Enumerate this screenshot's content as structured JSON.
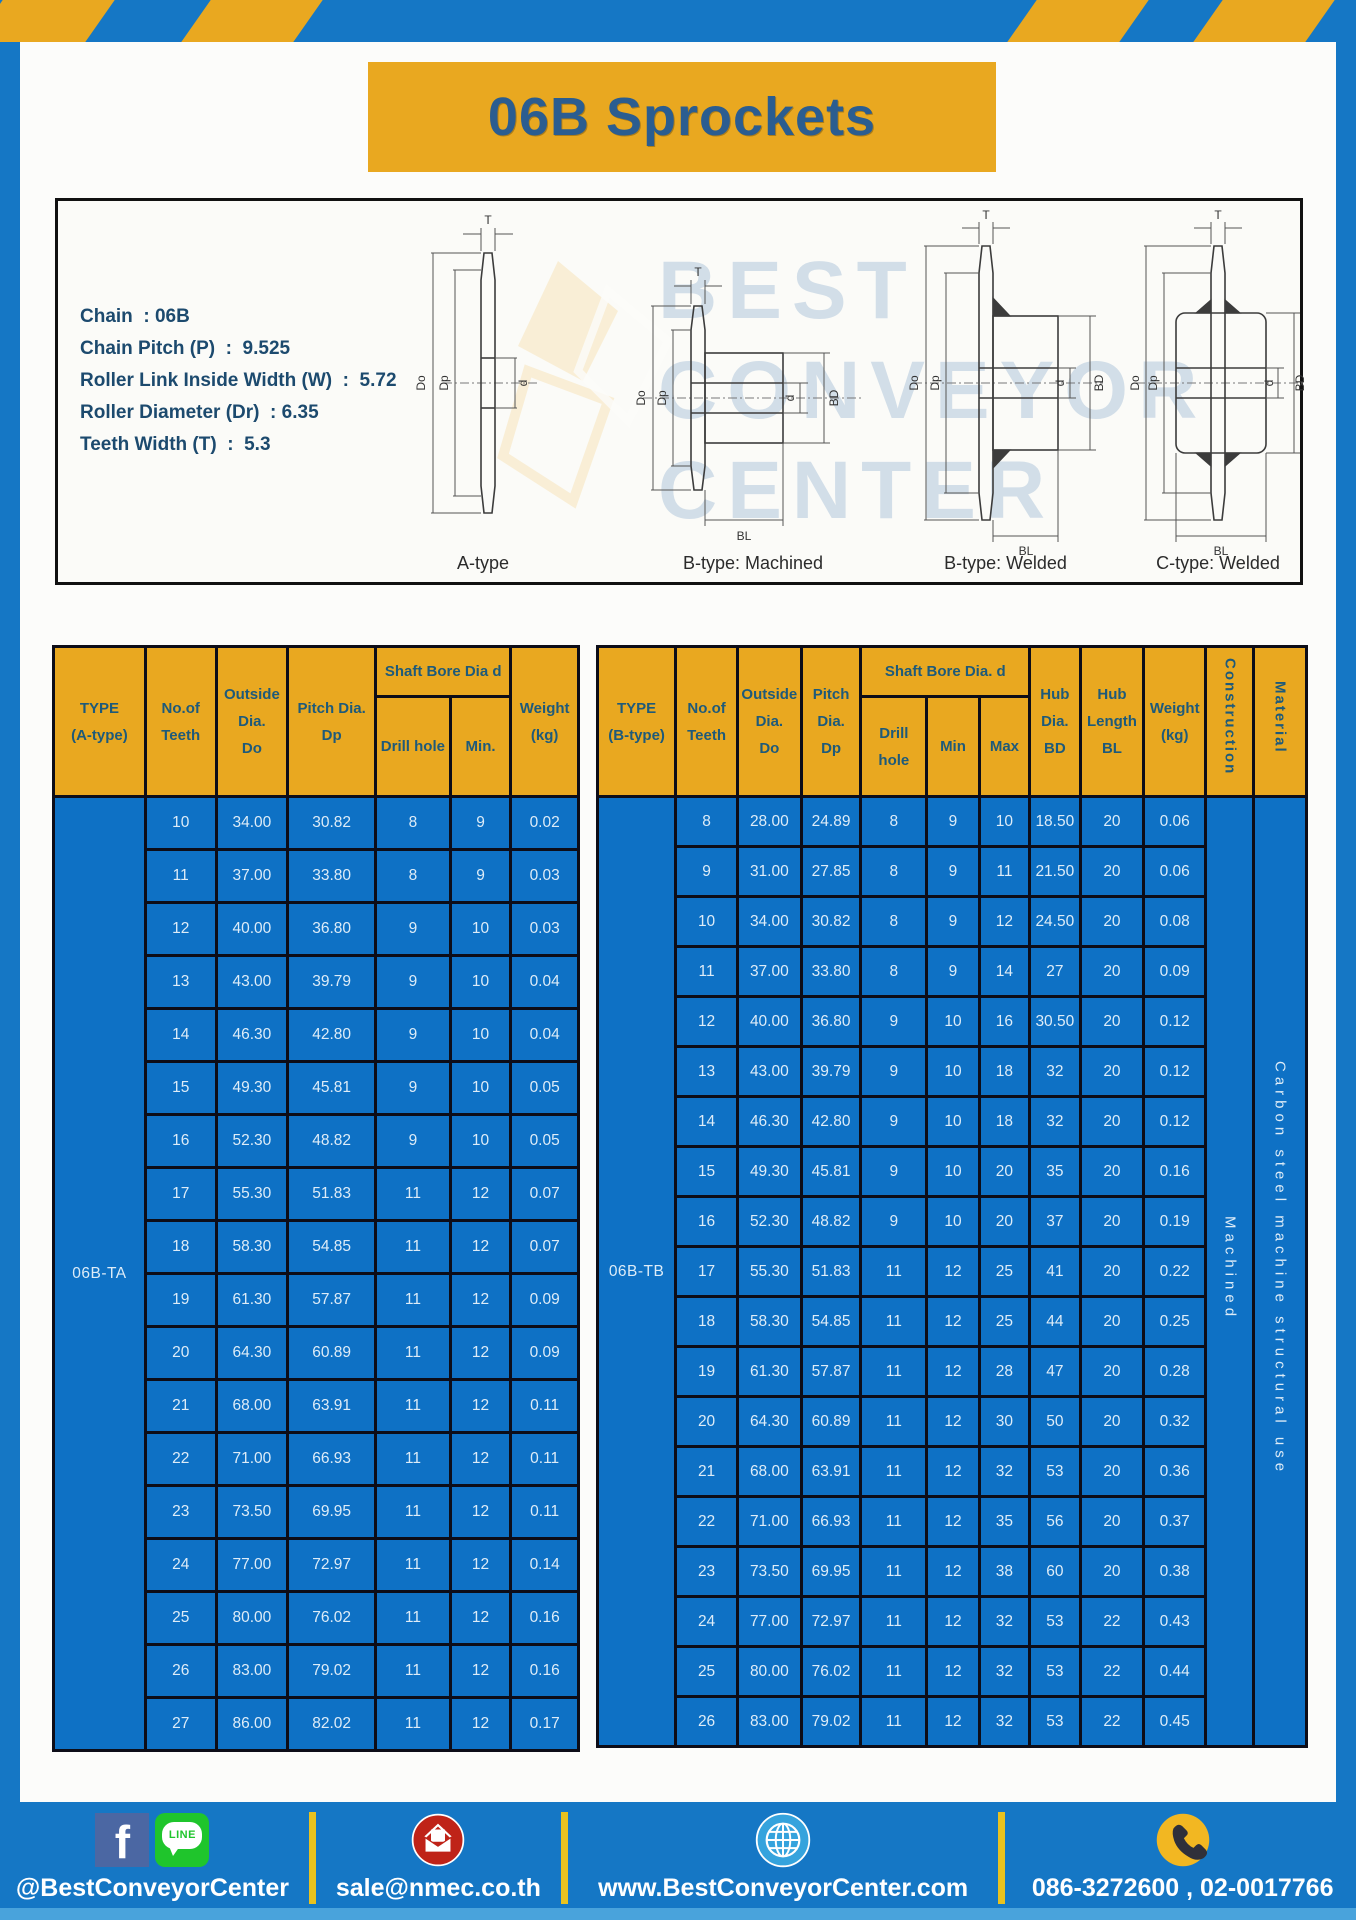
{
  "page": {
    "title": "06B Sprockets"
  },
  "specs": {
    "lines": [
      "Chain  : 06B",
      "Chain Pitch (P)  :  9.525",
      "Roller Link Inside Width (W)  :  5.72",
      "Roller Diameter (Dr)  : 6.35",
      "Teeth Width (T)  :  5.3"
    ]
  },
  "dims": {
    "T": "T",
    "Do": "Do",
    "Dp": "Dp",
    "d": "d",
    "BD": "BD",
    "BL": "BL"
  },
  "watermark": {
    "line1": "BEST",
    "line2": "CONVEYOR",
    "line3": "CENTER"
  },
  "diagrams": [
    {
      "caption": "A-type"
    },
    {
      "caption": "B-type: Machined"
    },
    {
      "caption": "B-type: Welded"
    },
    {
      "caption": "C-type: Welded"
    }
  ],
  "table_a": {
    "type_label": "06B-TA",
    "headers": {
      "type": "TYPE\n(A-type)",
      "teeth": "No.of\nTeeth",
      "outside": "Outside\nDia.\nDo",
      "pitch": "Pitch Dia.\nDp",
      "shaft_bore": "Shaft Bore Dia d",
      "drill": "Drill hole",
      "min": "Min.",
      "weight": "Weight\n(kg)"
    },
    "rows": [
      [
        "10",
        "34.00",
        "30.82",
        "8",
        "9",
        "0.02"
      ],
      [
        "11",
        "37.00",
        "33.80",
        "8",
        "9",
        "0.03"
      ],
      [
        "12",
        "40.00",
        "36.80",
        "9",
        "10",
        "0.03"
      ],
      [
        "13",
        "43.00",
        "39.79",
        "9",
        "10",
        "0.04"
      ],
      [
        "14",
        "46.30",
        "42.80",
        "9",
        "10",
        "0.04"
      ],
      [
        "15",
        "49.30",
        "45.81",
        "9",
        "10",
        "0.05"
      ],
      [
        "16",
        "52.30",
        "48.82",
        "9",
        "10",
        "0.05"
      ],
      [
        "17",
        "55.30",
        "51.83",
        "11",
        "12",
        "0.07"
      ],
      [
        "18",
        "58.30",
        "54.85",
        "11",
        "12",
        "0.07"
      ],
      [
        "19",
        "61.30",
        "57.87",
        "11",
        "12",
        "0.09"
      ],
      [
        "20",
        "64.30",
        "60.89",
        "11",
        "12",
        "0.09"
      ],
      [
        "21",
        "68.00",
        "63.91",
        "11",
        "12",
        "0.11"
      ],
      [
        "22",
        "71.00",
        "66.93",
        "11",
        "12",
        "0.11"
      ],
      [
        "23",
        "73.50",
        "69.95",
        "11",
        "12",
        "0.11"
      ],
      [
        "24",
        "77.00",
        "72.97",
        "11",
        "12",
        "0.14"
      ],
      [
        "25",
        "80.00",
        "76.02",
        "11",
        "12",
        "0.16"
      ],
      [
        "26",
        "83.00",
        "79.02",
        "11",
        "12",
        "0.16"
      ],
      [
        "27",
        "86.00",
        "82.02",
        "11",
        "12",
        "0.17"
      ]
    ]
  },
  "table_b": {
    "type_label": "06B-TB",
    "construction": "Machined",
    "material": "Carbon steel machine structural use",
    "headers": {
      "type": "TYPE\n(B-type)",
      "teeth": "No.of\nTeeth",
      "outside": "Outside\nDia.\nDo",
      "pitch": "Pitch\nDia.\nDp",
      "shaft_bore": "Shaft Bore Dia. d",
      "drill": "Drill hole",
      "min": "Min",
      "max": "Max",
      "hub_dia": "Hub\nDia.\nBD",
      "hub_len": "Hub\nLength\nBL",
      "weight": "Weight\n(kg)",
      "construction": "Construction",
      "material": "Material"
    },
    "rows": [
      [
        "8",
        "28.00",
        "24.89",
        "8",
        "9",
        "10",
        "18.50",
        "20",
        "0.06"
      ],
      [
        "9",
        "31.00",
        "27.85",
        "8",
        "9",
        "11",
        "21.50",
        "20",
        "0.06"
      ],
      [
        "10",
        "34.00",
        "30.82",
        "8",
        "9",
        "12",
        "24.50",
        "20",
        "0.08"
      ],
      [
        "11",
        "37.00",
        "33.80",
        "8",
        "9",
        "14",
        "27",
        "20",
        "0.09"
      ],
      [
        "12",
        "40.00",
        "36.80",
        "9",
        "10",
        "16",
        "30.50",
        "20",
        "0.12"
      ],
      [
        "13",
        "43.00",
        "39.79",
        "9",
        "10",
        "18",
        "32",
        "20",
        "0.12"
      ],
      [
        "14",
        "46.30",
        "42.80",
        "9",
        "10",
        "18",
        "32",
        "20",
        "0.12"
      ],
      [
        "15",
        "49.30",
        "45.81",
        "9",
        "10",
        "20",
        "35",
        "20",
        "0.16"
      ],
      [
        "16",
        "52.30",
        "48.82",
        "9",
        "10",
        "20",
        "37",
        "20",
        "0.19"
      ],
      [
        "17",
        "55.30",
        "51.83",
        "11",
        "12",
        "25",
        "41",
        "20",
        "0.22"
      ],
      [
        "18",
        "58.30",
        "54.85",
        "11",
        "12",
        "25",
        "44",
        "20",
        "0.25"
      ],
      [
        "19",
        "61.30",
        "57.87",
        "11",
        "12",
        "28",
        "47",
        "20",
        "0.28"
      ],
      [
        "20",
        "64.30",
        "60.89",
        "11",
        "12",
        "30",
        "50",
        "20",
        "0.32"
      ],
      [
        "21",
        "68.00",
        "63.91",
        "11",
        "12",
        "32",
        "53",
        "20",
        "0.36"
      ],
      [
        "22",
        "71.00",
        "66.93",
        "11",
        "12",
        "35",
        "56",
        "20",
        "0.37"
      ],
      [
        "23",
        "73.50",
        "69.95",
        "11",
        "12",
        "38",
        "60",
        "20",
        "0.38"
      ],
      [
        "24",
        "77.00",
        "72.97",
        "11",
        "12",
        "32",
        "53",
        "22",
        "0.43"
      ],
      [
        "25",
        "80.00",
        "76.02",
        "11",
        "12",
        "32",
        "53",
        "22",
        "0.44"
      ],
      [
        "26",
        "83.00",
        "79.02",
        "11",
        "12",
        "32",
        "53",
        "22",
        "0.45"
      ]
    ]
  },
  "footer": {
    "fb_glyph": "f",
    "line_badge": "LINE",
    "items": [
      {
        "icons": [
          "facebook-icon",
          "line-icon"
        ],
        "label": "@BestConveyorCenter"
      },
      {
        "icons": [
          "email-icon"
        ],
        "label": "sale@nmec.co.th"
      },
      {
        "icons": [
          "globe-icon"
        ],
        "label": "www.BestConveyorCenter.com"
      },
      {
        "icons": [
          "phone-icon"
        ],
        "label": "086-3272600 , 02-0017766"
      }
    ]
  },
  "colors": {
    "frame_blue": "#1577c5",
    "gold": "#e9a820",
    "cell_blue": "#0e71c5",
    "header_text": "#1e5a7a",
    "title_text": "#2b5d90"
  }
}
